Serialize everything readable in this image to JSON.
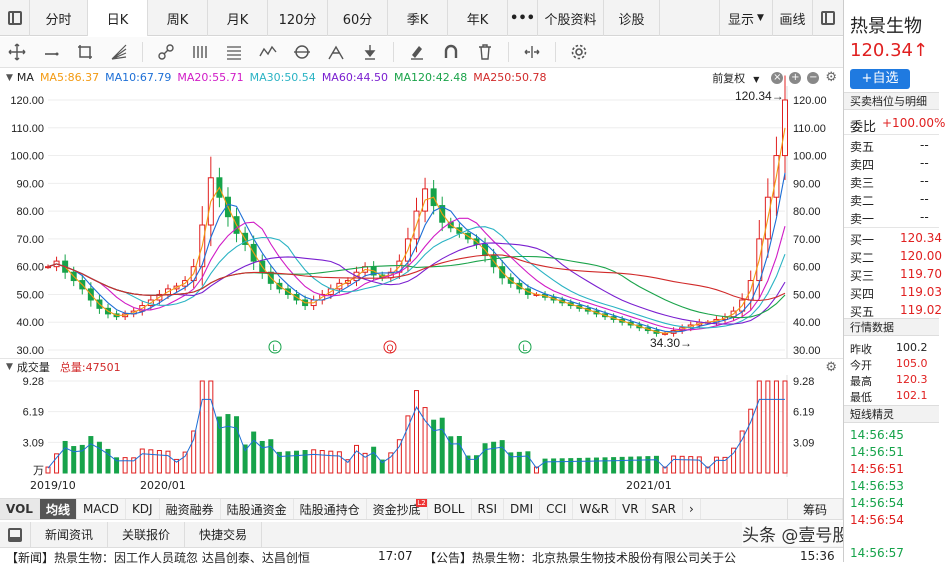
{
  "topbar": {
    "tabs": [
      "分时",
      "日K",
      "周K",
      "月K",
      "120分",
      "60分",
      "季K",
      "年K"
    ],
    "active_tab": "日K",
    "more": "•••",
    "right_tabs": [
      "个股资料",
      "诊股"
    ],
    "display_label": "显示",
    "draw_label": "画线"
  },
  "toolbar": {
    "icons": [
      "move-icon",
      "line-icon",
      "crop-icon",
      "fan-icon",
      "link-icon",
      "parallel-icon",
      "levels-icon",
      "wave-icon",
      "cycle-icon",
      "pattern-icon",
      "arrow-down-icon",
      "eraser-icon",
      "magnet-icon",
      "trash-icon",
      "spread-icon",
      "settings-icon"
    ]
  },
  "ma": {
    "label": "MA",
    "items": [
      {
        "text": "MA5:86.37",
        "color": "#f39a12"
      },
      {
        "text": "MA10:67.79",
        "color": "#1d6fd6"
      },
      {
        "text": "MA20:55.71",
        "color": "#d01cc6"
      },
      {
        "text": "MA30:50.54",
        "color": "#2bb3c4"
      },
      {
        "text": "MA60:44.50",
        "color": "#7a1fd0"
      },
      {
        "text": "MA120:42.48",
        "color": "#1aa34a"
      },
      {
        "text": "MA250:50.78",
        "color": "#d12a2a"
      }
    ],
    "adjust_label": "前复权"
  },
  "chart_data": {
    "type": "candlestick",
    "price_axis": {
      "ticks": [
        "120.00",
        "110.00",
        "100.00",
        "90.00",
        "80.00",
        "70.00",
        "60.00",
        "50.00",
        "40.00",
        "30.00"
      ],
      "range": [
        30,
        120
      ]
    },
    "volume_axis": {
      "ticks": [
        "9.28",
        "6.19",
        "3.09",
        "万"
      ]
    },
    "x_ticks": [
      "2019/10",
      "2020/01",
      "2021/01"
    ],
    "annotations": {
      "high": "120.34→",
      "low": "34.30→"
    },
    "markers": [
      "L",
      "Q",
      "L"
    ],
    "close_series": [
      60,
      62,
      58,
      55,
      52,
      48,
      45,
      43,
      42,
      43,
      44,
      46,
      48,
      50,
      52,
      53,
      55,
      60,
      75,
      92,
      85,
      78,
      72,
      68,
      62,
      58,
      54,
      52,
      50,
      48,
      46,
      48,
      50,
      52,
      54,
      55,
      58,
      60,
      57,
      56,
      58,
      62,
      70,
      80,
      88,
      82,
      76,
      74,
      72,
      70,
      68,
      64,
      60,
      56,
      54,
      52,
      50,
      50,
      49,
      48,
      47,
      46,
      45,
      44,
      43,
      42,
      41,
      40,
      39,
      38,
      37,
      36,
      36,
      37,
      38,
      39,
      40,
      40,
      41,
      42,
      44,
      48,
      55,
      70,
      85,
      100,
      120
    ]
  },
  "volume": {
    "label": "成交量",
    "total": "总量:47501"
  },
  "indicators": [
    "VOL",
    "均线",
    "MACD",
    "KDJ",
    "融资融券",
    "陆股通资金",
    "陆股通持仓",
    "资金抄底",
    "BOLL",
    "RSI",
    "DMI",
    "CCI",
    "W&R",
    "VR",
    "SAR"
  ],
  "indicator_badge": "L2",
  "chip_label": "筹码",
  "bottom_tabs": [
    "新闻资讯",
    "关联报价",
    "快捷交易"
  ],
  "news": [
    {
      "tag": "【新闻】",
      "text": "热景生物：因工作人员疏忽 达昌创泰、达昌创恒",
      "time": "17:07"
    },
    {
      "tag": "【公告】",
      "text": "热景生物：北京热景生物技术股份有限公司关于公",
      "time": "15:36"
    }
  ],
  "right": {
    "name": "热景生物",
    "price": "120.34",
    "arrow": "↑",
    "add_label": "+自选",
    "orderbook_title": "买卖档位与明细",
    "ratio_label": "委比",
    "ratio_value": "+100.00%",
    "sells": [
      {
        "label": "卖五",
        "value": "--"
      },
      {
        "label": "卖四",
        "value": "--"
      },
      {
        "label": "卖三",
        "value": "--"
      },
      {
        "label": "卖二",
        "value": "--"
      },
      {
        "label": "卖一",
        "value": "--"
      }
    ],
    "buys": [
      {
        "label": "买一",
        "value": "120.34"
      },
      {
        "label": "买二",
        "value": "120.00"
      },
      {
        "label": "买三",
        "value": "119.70"
      },
      {
        "label": "买四",
        "value": "119.03"
      },
      {
        "label": "买五",
        "value": "119.02"
      }
    ],
    "quote_title": "行情数据",
    "quotes": [
      {
        "label": "昨收",
        "value": "100.2"
      },
      {
        "label": "今开",
        "value": "105.0"
      },
      {
        "label": "最高",
        "value": "120.3"
      },
      {
        "label": "最低",
        "value": "102.1"
      }
    ],
    "trades_title": "短线精灵",
    "trades": [
      "14:56:45",
      "14:56:51",
      "14:56:51",
      "14:56:53",
      "14:56:54",
      "14:56:54",
      "14:56:57"
    ]
  },
  "watermark": "头条 @壹号股权"
}
